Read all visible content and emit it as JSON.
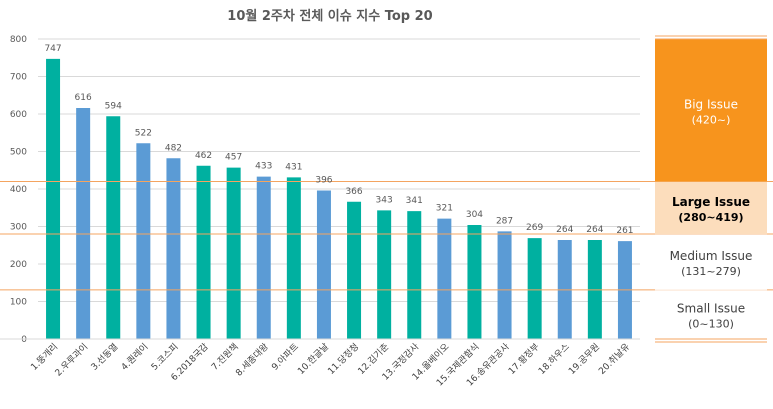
{
  "chart_data": {
    "type": "bar",
    "title": "10월 2주차 전체 이슈 지수 Top 20",
    "xlabel": "",
    "ylabel": "",
    "ylim": [
      0,
      800
    ],
    "yticks": [
      0,
      100,
      200,
      300,
      400,
      500,
      600,
      700,
      800
    ],
    "grid": true,
    "categories": [
      "1.뚱개리",
      "2.우루과이",
      "3.선동열",
      "4.퀀레이",
      "5.코스피",
      "6.2018국감",
      "7.진원책",
      "8.세종대왕",
      "9.아파트",
      "10.한글날",
      "11.당정청",
      "12.김기춘",
      "13.국정감사",
      "14.올베이오",
      "15.국제관함식",
      "16.송유관공사",
      "17.황정부",
      "18.하우스",
      "19.공무원",
      "20.취날유"
    ],
    "values": [
      747,
      616,
      594,
      522,
      482,
      462,
      457,
      433,
      431,
      396,
      366,
      343,
      341,
      321,
      304,
      287,
      269,
      264,
      264,
      261
    ],
    "bar_colors": [
      "#00B0A0",
      "#5B9BD5",
      "#00B0A0",
      "#5B9BD5",
      "#5B9BD5",
      "#00B0A0",
      "#00B0A0",
      "#5B9BD5",
      "#00B0A0",
      "#5B9BD5",
      "#00B0A0",
      "#00B0A0",
      "#00B0A0",
      "#5B9BD5",
      "#00B0A0",
      "#5B9BD5",
      "#00B0A0",
      "#5B9BD5",
      "#00B0A0",
      "#5B9BD5"
    ],
    "thresholds": [
      420,
      280,
      131
    ],
    "threshold_color": "#F4A460",
    "legend_position": "right",
    "legend": [
      {
        "label": "Big Issue",
        "range": "(420~)",
        "min": 420,
        "max": 800,
        "bg": "#F7941D",
        "fg": "#FFFFFF"
      },
      {
        "label": "Large Issue",
        "range": "(280~419)",
        "min": 280,
        "max": 419,
        "bg": "#FCDDBC",
        "fg": "#000000"
      },
      {
        "label": "Medium Issue",
        "range": "(131~279)",
        "min": 131,
        "max": 279,
        "bg": "#FFFFFF",
        "fg": "#404040"
      },
      {
        "label": "Small Issue",
        "range": "(0~130)",
        "min": 0,
        "max": 130,
        "bg": "#FFFFFF",
        "fg": "#404040"
      }
    ]
  }
}
